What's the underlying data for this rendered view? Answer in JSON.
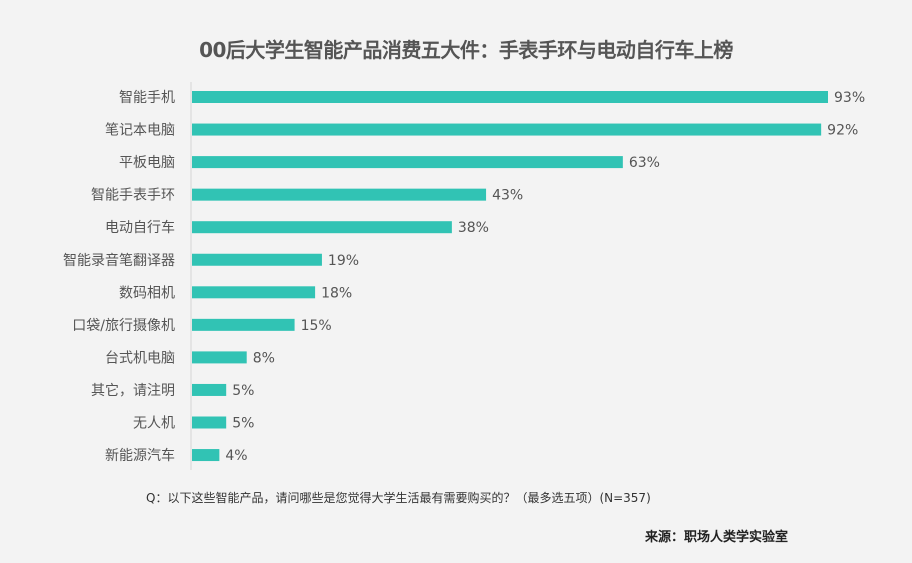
{
  "chart_data": {
    "type": "bar",
    "orientation": "horizontal",
    "title": "00后大学生智能产品消费五大件：手表手环与电动自行车上榜",
    "categories": [
      "智能手机",
      "笔记本电脑",
      "平板电脑",
      "智能手表手环",
      "电动自行车",
      "智能录音笔翻译器",
      "数码相机",
      "口袋/旅行摄像机",
      "台式机电脑",
      "其它，请注明",
      "无人机",
      "新能源汽车"
    ],
    "values": [
      93,
      92,
      63,
      43,
      38,
      19,
      18,
      15,
      8,
      5,
      5,
      4
    ],
    "unit": "%",
    "xlim": [
      0,
      100
    ],
    "grid": false,
    "bar_color": "#31c3b4"
  },
  "footer": {
    "question": "Q：以下这些智能产品，请问哪些是您觉得大学生活最有需要购买的？（最多选五项）(N=357)",
    "source": "来源：职场人类学实验室"
  }
}
